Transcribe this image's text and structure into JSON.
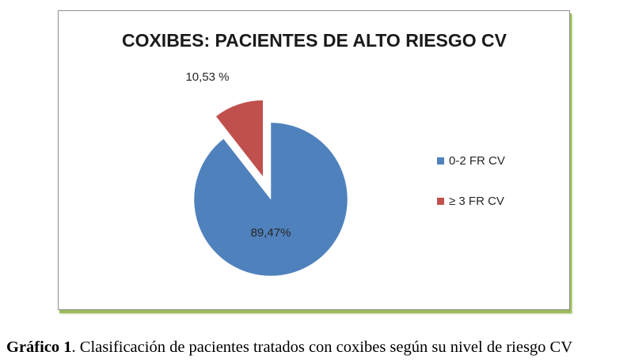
{
  "chart_data": {
    "type": "pie",
    "title": "COXIBES: PACIENTES DE ALTO RIESGO CV",
    "categories": [
      "0-2 FR CV",
      "≥ 3 FR CV"
    ],
    "values": [
      89.47,
      10.53
    ],
    "data_labels": [
      "89,47%",
      "10,53 %"
    ],
    "colors": [
      "#4f81bd",
      "#c0504d"
    ],
    "exploded": [
      "≥ 3 FR CV"
    ],
    "legend_position": "right"
  },
  "caption": {
    "label": "Gráfico 1",
    "text": ". Clasificación de pacientes tratados con coxibes según su nivel de riesgo CV"
  }
}
